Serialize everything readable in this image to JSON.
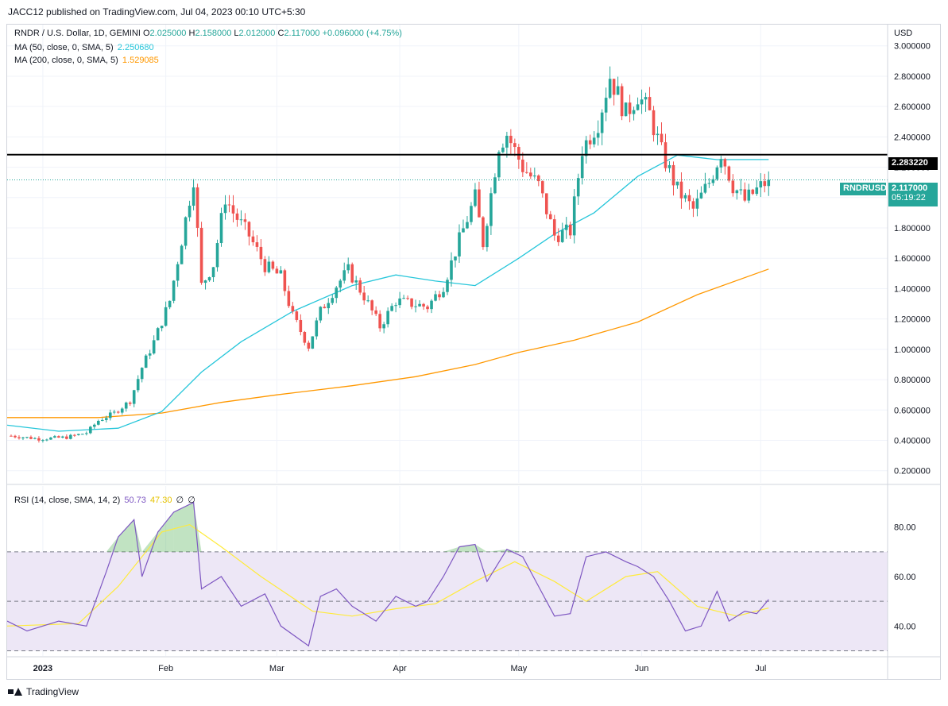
{
  "publisher": "JACC12 published on TradingView.com, Jul 04, 2023 00:10 UTC+5:30",
  "brand": "TradingView",
  "currency": "USD",
  "legend": {
    "symbol": "RNDR / U.S. Dollar, 1D, GEMINI",
    "o_label": "O",
    "o_value": "2.025000",
    "h_label": "H",
    "h_value": "2.158000",
    "l_label": "L",
    "l_value": "2.012000",
    "c_label": "C",
    "c_value": "2.117000",
    "change": "+0.096000 (+4.75%)",
    "ma50_label": "MA (50, close, 0, SMA, 5)",
    "ma50_value": "2.250680",
    "ma200_label": "MA (200, close, 0, SMA, 5)",
    "ma200_value": "1.529085",
    "rsi_label": "RSI (14, close, SMA, 14, 2)",
    "rsi_value": "50.73",
    "rsi_ma_value": "47.30",
    "rsi_extra1": "∅",
    "rsi_extra2": "∅"
  },
  "badges": {
    "level_value": "2.283220",
    "ticker": "RNDRUSD",
    "price_value": "2.117000",
    "countdown": "05:19:22"
  },
  "colors": {
    "up": "#26a69a",
    "down": "#ef5350",
    "ma50": "#26c6da",
    "ma200": "#ff9800",
    "rsi": "#7e57c2",
    "rsi_ma": "#ffeb3b",
    "band": "#ede7f6",
    "level": "#000000"
  },
  "icons": {
    "brand_logo": "tradingview-logo"
  },
  "chart_data": [
    {
      "type": "candlestick",
      "title": "RNDR / U.S. Dollar, 1D, GEMINI",
      "price_axis_ticks": [
        "3.000000",
        "2.800000",
        "2.600000",
        "2.400000",
        "2.200000",
        "2.000000",
        "1.800000",
        "1.600000",
        "1.400000",
        "1.200000",
        "1.000000",
        "0.800000",
        "0.600000",
        "0.400000",
        "0.200000"
      ],
      "ylim": [
        0.12,
        3.14
      ],
      "xlim": [
        "2022-12-23",
        "2023-08-02"
      ],
      "x_ticks": [
        "2023",
        "Feb",
        "Mar",
        "Apr",
        "May",
        "Jun",
        "Jul"
      ],
      "x_tick_dates": [
        "2023-01-01",
        "2023-02-01",
        "2023-03-01",
        "2023-04-01",
        "2023-05-01",
        "2023-06-01",
        "2023-07-01"
      ],
      "horizontal_line": 2.28322,
      "last_close": 2.117,
      "series_close": [
        [
          "2022-12-24",
          0.43
        ],
        [
          "2022-12-31",
          0.41
        ],
        [
          "2023-01-07",
          0.42
        ],
        [
          "2023-01-12",
          0.45
        ],
        [
          "2023-01-15",
          0.53
        ],
        [
          "2023-01-19",
          0.58
        ],
        [
          "2023-01-23",
          0.66
        ],
        [
          "2023-01-26",
          0.88
        ],
        [
          "2023-01-29",
          1.05
        ],
        [
          "2023-02-02",
          1.32
        ],
        [
          "2023-02-05",
          1.72
        ],
        [
          "2023-02-08",
          2.13
        ],
        [
          "2023-02-10",
          1.42
        ],
        [
          "2023-02-13",
          1.56
        ],
        [
          "2023-02-16",
          2.0
        ],
        [
          "2023-02-18",
          1.9
        ],
        [
          "2023-02-22",
          1.75
        ],
        [
          "2023-02-26",
          1.55
        ],
        [
          "2023-03-02",
          1.48
        ],
        [
          "2023-03-05",
          1.22
        ],
        [
          "2023-03-09",
          1.02
        ],
        [
          "2023-03-12",
          1.25
        ],
        [
          "2023-03-16",
          1.42
        ],
        [
          "2023-03-19",
          1.52
        ],
        [
          "2023-03-23",
          1.35
        ],
        [
          "2023-03-27",
          1.15
        ],
        [
          "2023-03-31",
          1.32
        ],
        [
          "2023-04-04",
          1.3
        ],
        [
          "2023-04-08",
          1.28
        ],
        [
          "2023-04-12",
          1.42
        ],
        [
          "2023-04-16",
          1.72
        ],
        [
          "2023-04-20",
          2.0
        ],
        [
          "2023-04-22",
          1.7
        ],
        [
          "2023-04-26",
          2.35
        ],
        [
          "2023-04-28",
          2.42
        ],
        [
          "2023-05-02",
          2.2
        ],
        [
          "2023-05-06",
          2.08
        ],
        [
          "2023-05-10",
          1.75
        ],
        [
          "2023-05-14",
          1.78
        ],
        [
          "2023-05-17",
          2.32
        ],
        [
          "2023-05-21",
          2.5
        ],
        [
          "2023-05-24",
          2.8
        ],
        [
          "2023-05-28",
          2.55
        ],
        [
          "2023-05-31",
          2.68
        ],
        [
          "2023-06-03",
          2.55
        ],
        [
          "2023-06-06",
          2.3
        ],
        [
          "2023-06-10",
          2.05
        ],
        [
          "2023-06-14",
          1.92
        ],
        [
          "2023-06-18",
          2.1
        ],
        [
          "2023-06-21",
          2.3
        ],
        [
          "2023-06-24",
          2.08
        ],
        [
          "2023-06-27",
          1.98
        ],
        [
          "2023-06-30",
          2.05
        ],
        [
          "2023-07-03",
          2.117
        ]
      ],
      "ma50": [
        [
          "2022-12-23",
          0.5
        ],
        [
          "2023-01-05",
          0.46
        ],
        [
          "2023-01-20",
          0.48
        ],
        [
          "2023-01-31",
          0.59
        ],
        [
          "2023-02-10",
          0.85
        ],
        [
          "2023-02-20",
          1.05
        ],
        [
          "2023-03-05",
          1.25
        ],
        [
          "2023-03-20",
          1.42
        ],
        [
          "2023-03-31",
          1.49
        ],
        [
          "2023-04-10",
          1.45
        ],
        [
          "2023-04-20",
          1.42
        ],
        [
          "2023-05-01",
          1.6
        ],
        [
          "2023-05-10",
          1.76
        ],
        [
          "2023-05-20",
          1.9
        ],
        [
          "2023-05-31",
          2.14
        ],
        [
          "2023-06-10",
          2.28
        ],
        [
          "2023-06-20",
          2.25
        ],
        [
          "2023-07-03",
          2.25068
        ]
      ],
      "ma200": [
        [
          "2022-12-23",
          0.55
        ],
        [
          "2023-01-15",
          0.55
        ],
        [
          "2023-01-31",
          0.58
        ],
        [
          "2023-02-15",
          0.65
        ],
        [
          "2023-03-01",
          0.7
        ],
        [
          "2023-03-20",
          0.76
        ],
        [
          "2023-04-05",
          0.82
        ],
        [
          "2023-04-20",
          0.9
        ],
        [
          "2023-05-01",
          0.98
        ],
        [
          "2023-05-15",
          1.06
        ],
        [
          "2023-05-31",
          1.18
        ],
        [
          "2023-06-15",
          1.36
        ],
        [
          "2023-07-03",
          1.529085
        ]
      ]
    },
    {
      "type": "line",
      "title": "RSI (14, close, SMA, 14, 2)",
      "y_ticks": [
        "80.00",
        "60.00",
        "40.00"
      ],
      "ylim": [
        27.9,
        96.6
      ],
      "bands": [
        70,
        50,
        30
      ],
      "series": [
        {
          "name": "RSI",
          "values": [
            [
              "2022-12-23",
              42
            ],
            [
              "2022-12-28",
              38
            ],
            [
              "2023-01-05",
              42
            ],
            [
              "2023-01-12",
              40
            ],
            [
              "2023-01-17",
              62
            ],
            [
              "2023-01-20",
              76
            ],
            [
              "2023-01-24",
              83
            ],
            [
              "2023-01-26",
              60
            ],
            [
              "2023-01-30",
              78
            ],
            [
              "2023-02-03",
              86
            ],
            [
              "2023-02-08",
              90
            ],
            [
              "2023-02-10",
              55
            ],
            [
              "2023-02-15",
              60
            ],
            [
              "2023-02-20",
              48
            ],
            [
              "2023-02-26",
              53
            ],
            [
              "2023-03-02",
              40
            ],
            [
              "2023-03-09",
              32
            ],
            [
              "2023-03-12",
              52
            ],
            [
              "2023-03-16",
              55
            ],
            [
              "2023-03-20",
              48
            ],
            [
              "2023-03-26",
              42
            ],
            [
              "2023-03-31",
              52
            ],
            [
              "2023-04-05",
              48
            ],
            [
              "2023-04-08",
              50
            ],
            [
              "2023-04-12",
              60
            ],
            [
              "2023-04-16",
              72
            ],
            [
              "2023-04-20",
              73
            ],
            [
              "2023-04-23",
              58
            ],
            [
              "2023-04-28",
              71
            ],
            [
              "2023-05-02",
              68
            ],
            [
              "2023-05-06",
              56
            ],
            [
              "2023-05-10",
              44
            ],
            [
              "2023-05-14",
              45
            ],
            [
              "2023-05-18",
              68
            ],
            [
              "2023-05-23",
              70
            ],
            [
              "2023-05-28",
              66
            ],
            [
              "2023-05-31",
              64
            ],
            [
              "2023-06-04",
              60
            ],
            [
              "2023-06-08",
              50
            ],
            [
              "2023-06-12",
              38
            ],
            [
              "2023-06-16",
              40
            ],
            [
              "2023-06-20",
              54
            ],
            [
              "2023-06-23",
              42
            ],
            [
              "2023-06-27",
              46
            ],
            [
              "2023-06-30",
              45
            ],
            [
              "2023-07-03",
              50.73
            ]
          ]
        },
        {
          "name": "RSI MA",
          "values": [
            [
              "2022-12-23",
              40
            ],
            [
              "2023-01-10",
              41
            ],
            [
              "2023-01-20",
              56
            ],
            [
              "2023-01-31",
              78
            ],
            [
              "2023-02-07",
              81
            ],
            [
              "2023-02-15",
              72
            ],
            [
              "2023-02-25",
              60
            ],
            [
              "2023-03-10",
              46
            ],
            [
              "2023-03-20",
              44
            ],
            [
              "2023-03-31",
              47
            ],
            [
              "2023-04-10",
              49
            ],
            [
              "2023-04-20",
              58
            ],
            [
              "2023-04-30",
              66
            ],
            [
              "2023-05-10",
              58
            ],
            [
              "2023-05-18",
              50
            ],
            [
              "2023-05-28",
              60
            ],
            [
              "2023-06-05",
              62
            ],
            [
              "2023-06-15",
              48
            ],
            [
              "2023-06-25",
              44
            ],
            [
              "2023-07-03",
              47.3
            ]
          ]
        }
      ]
    }
  ]
}
